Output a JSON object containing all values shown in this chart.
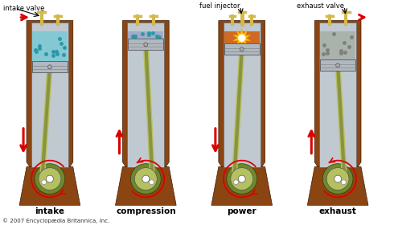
{
  "title": "",
  "background_color": "#ffffff",
  "labels": [
    "intake",
    "compression",
    "power",
    "exhaust"
  ],
  "copyright": "© 2007 Encyclopædia Britannica, Inc.",
  "brown_body": "#8B4513",
  "cylinder_color": "#c0c8d0",
  "piston_color": "#b0b8c0",
  "gas_blue": "#7ec8d4",
  "gas_dots_color": "#2899a8",
  "spark_color": "#ffdd00",
  "exhaust_dots_color": "#808080",
  "crankshaft_color": "#b5c060",
  "crankshaft_dark": "#6e8830",
  "valve_color": "#d4b84a",
  "arrow_color": "#dd0000",
  "figsize": [
    4.9,
    2.8
  ],
  "dpi": 100,
  "positions": [
    61,
    181,
    301,
    421
  ]
}
